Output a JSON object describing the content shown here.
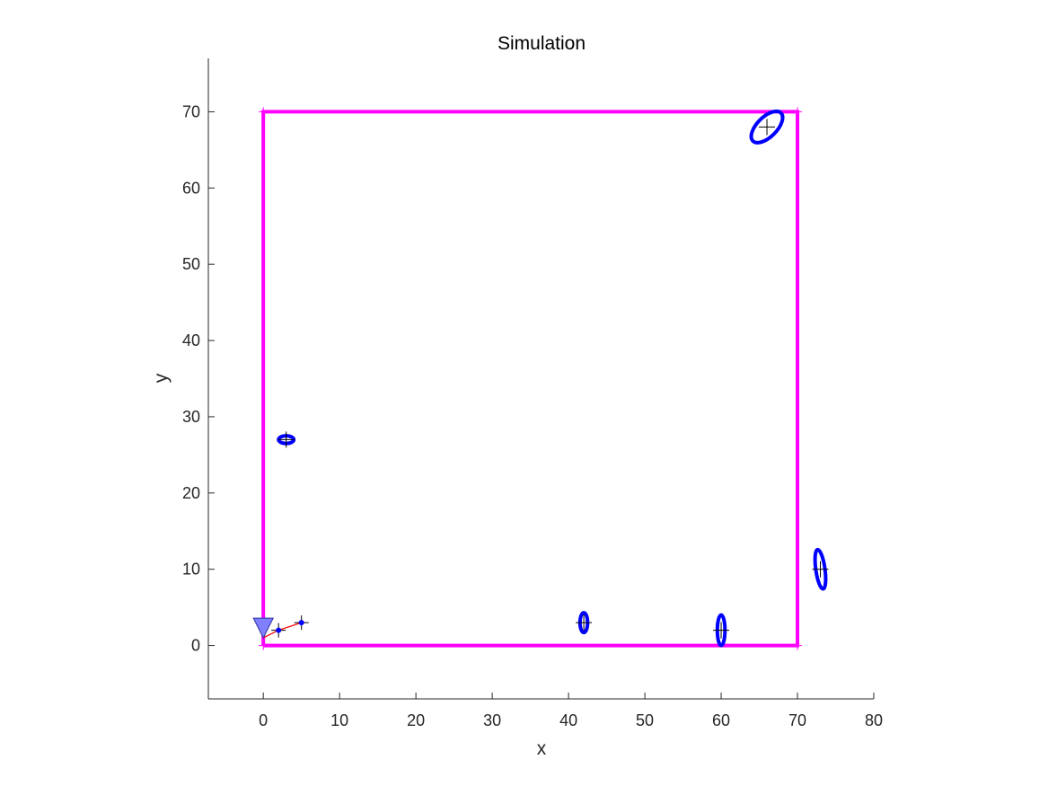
{
  "chart_data": {
    "type": "scatter",
    "title": "Simulation",
    "xlabel": "x",
    "ylabel": "y",
    "xlim": [
      -7.2,
      80
    ],
    "ylim": [
      -7,
      77
    ],
    "xticks": [
      0,
      10,
      20,
      30,
      40,
      50,
      60,
      70,
      80
    ],
    "yticks": [
      0,
      10,
      20,
      30,
      40,
      50,
      60,
      70
    ],
    "grid": false,
    "boundary": {
      "color": "#ff00ff",
      "corners": [
        [
          0,
          0
        ],
        [
          70,
          0
        ],
        [
          70,
          70
        ],
        [
          0,
          70
        ]
      ]
    },
    "landmarks": {
      "ellipse_color": "#0000ff",
      "marker": "plus",
      "items": [
        {
          "x": 66,
          "y": 68,
          "rx": 2.6,
          "ry": 1.3,
          "angle_deg": 45
        },
        {
          "x": 3,
          "y": 27,
          "rx": 1.0,
          "ry": 0.5,
          "angle_deg": 0
        },
        {
          "x": 73,
          "y": 10,
          "rx": 0.6,
          "ry": 2.6,
          "angle_deg": 8
        },
        {
          "x": 42,
          "y": 3,
          "rx": 0.5,
          "ry": 1.3,
          "angle_deg": 0
        },
        {
          "x": 60,
          "y": 2,
          "rx": 0.5,
          "ry": 2.0,
          "angle_deg": 0
        }
      ]
    },
    "trajectory": {
      "color": "#ff0000",
      "points": [
        [
          0,
          1
        ],
        [
          2,
          2
        ],
        [
          5,
          3
        ]
      ]
    },
    "observations": {
      "color": "#0000ff",
      "points": [
        [
          2,
          2
        ],
        [
          5,
          3
        ]
      ]
    },
    "robot": {
      "x": 0,
      "y": 1,
      "color": "#8080ff"
    }
  }
}
